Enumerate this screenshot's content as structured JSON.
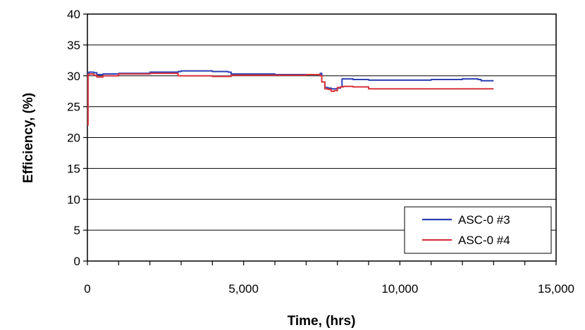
{
  "chart_data": {
    "type": "line",
    "xlabel": "Time, (hrs)",
    "ylabel": "Efficiency, (%)",
    "xlim": [
      0,
      15000
    ],
    "ylim": [
      0,
      40
    ],
    "x_ticks": [
      0,
      5000,
      10000,
      15000
    ],
    "x_tick_labels": [
      "0",
      "5,000",
      "10,000",
      "15,000"
    ],
    "y_ticks": [
      0,
      5,
      10,
      15,
      20,
      25,
      30,
      35,
      40
    ],
    "y_tick_labels": [
      "0",
      "5",
      "10",
      "15",
      "20",
      "25",
      "30",
      "35",
      "40"
    ],
    "grid": "horizontal",
    "legend_position": "bottom-right",
    "series": [
      {
        "name": "ASC-0 #3",
        "color": "#2b3fb4",
        "x": [
          0,
          20,
          50,
          200,
          300,
          500,
          1000,
          2000,
          2900,
          3000,
          3500,
          4000,
          4500,
          4600,
          5000,
          6000,
          7000,
          7400,
          7450,
          7500,
          7600,
          7700,
          7800,
          7900,
          8000,
          8100,
          8150,
          8500,
          9000,
          9500,
          10000,
          11000,
          12000,
          12500,
          12600,
          13000
        ],
        "y": [
          22.5,
          30.4,
          30.6,
          30.5,
          30.2,
          30.3,
          30.4,
          30.6,
          30.7,
          30.8,
          30.8,
          30.7,
          30.6,
          30.3,
          30.3,
          30.2,
          30.2,
          30.2,
          30.4,
          29.0,
          28.1,
          28.0,
          27.9,
          27.9,
          28.0,
          28.2,
          29.5,
          29.4,
          29.3,
          29.3,
          29.3,
          29.4,
          29.5,
          29.4,
          29.2,
          29.2
        ]
      },
      {
        "name": "ASC-0 #4",
        "color": "#d8323a",
        "x": [
          0,
          20,
          50,
          200,
          300,
          500,
          1000,
          2000,
          2800,
          2900,
          3500,
          4000,
          4600,
          5000,
          6000,
          7000,
          7400,
          7450,
          7500,
          7600,
          7700,
          7800,
          7900,
          8000,
          8100,
          8200,
          8500,
          9000,
          9500,
          10000,
          11000,
          12000,
          12500,
          13000
        ],
        "y": [
          22.0,
          30.2,
          30.3,
          30.1,
          29.8,
          30.0,
          30.3,
          30.4,
          30.4,
          30.0,
          30.0,
          29.9,
          30.1,
          30.1,
          30.1,
          30.2,
          30.2,
          30.0,
          29.0,
          27.9,
          27.8,
          27.5,
          27.6,
          28.1,
          28.2,
          28.3,
          28.2,
          27.9,
          27.9,
          27.9,
          27.9,
          27.9,
          27.9,
          27.9
        ]
      }
    ]
  }
}
